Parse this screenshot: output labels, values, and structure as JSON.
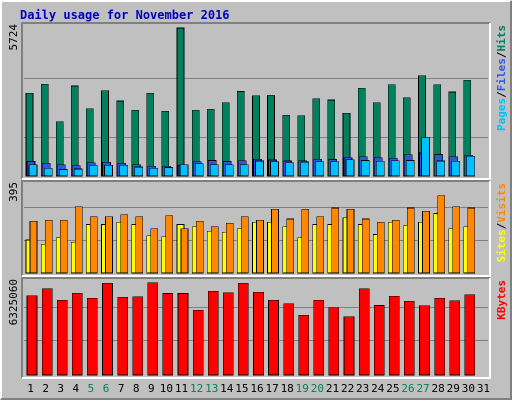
{
  "title": "Daily usage for November 2016",
  "colors": {
    "background": "#C0C0C0",
    "title": "#0000C0",
    "pages": "#00C0FF",
    "files": "#2F54E8",
    "hits": "#00805C",
    "sites": "#FFFF00",
    "visits": "#FF8800",
    "kbytes": "#FF0000",
    "weekend_label": "#00805C"
  },
  "chart_data": [
    {
      "type": "bar",
      "title": "Daily usage for November 2016",
      "legend": [
        "Pages",
        "Files",
        "Hits"
      ],
      "ylabel_top": "5724",
      "categories": [
        "1",
        "2",
        "3",
        "4",
        "5",
        "6",
        "7",
        "8",
        "9",
        "10",
        "11",
        "12",
        "13",
        "14",
        "15",
        "16",
        "17",
        "18",
        "19",
        "20",
        "21",
        "22",
        "23",
        "24",
        "25",
        "26",
        "27",
        "28",
        "29",
        "30",
        "31"
      ],
      "weekend_days": [
        5,
        6,
        12,
        13,
        19,
        20,
        26,
        27
      ],
      "ylim": [
        0,
        5724
      ],
      "series": [
        {
          "name": "Hits",
          "values": [
            3200,
            3550,
            2100,
            3480,
            2600,
            3300,
            2900,
            2550,
            3200,
            2500,
            5724,
            2550,
            2580,
            2830,
            3270,
            3100,
            3130,
            2350,
            2330,
            2980,
            2940,
            2430,
            3400,
            2830,
            3530,
            3020,
            3880,
            3530,
            3250,
            3700,
            0
          ]
        },
        {
          "name": "Files",
          "values": [
            560,
            500,
            440,
            400,
            510,
            530,
            490,
            430,
            380,
            380,
            410,
            550,
            600,
            560,
            590,
            650,
            620,
            580,
            590,
            650,
            640,
            710,
            740,
            710,
            690,
            820,
            890,
            830,
            740,
            800,
            0
          ]
        },
        {
          "name": "Pages",
          "values": [
            440,
            300,
            250,
            270,
            420,
            420,
            410,
            350,
            300,
            330,
            430,
            470,
            430,
            430,
            440,
            580,
            550,
            520,
            540,
            550,
            550,
            630,
            600,
            570,
            590,
            600,
            1480,
            580,
            570,
            760,
            0
          ]
        }
      ]
    },
    {
      "type": "bar",
      "legend": [
        "Sites",
        "Visits"
      ],
      "ylabel_top": "395",
      "categories": [
        "1",
        "2",
        "3",
        "4",
        "5",
        "6",
        "7",
        "8",
        "9",
        "10",
        "11",
        "12",
        "13",
        "14",
        "15",
        "16",
        "17",
        "18",
        "19",
        "20",
        "21",
        "22",
        "23",
        "24",
        "25",
        "26",
        "27",
        "28",
        "29",
        "30",
        "31"
      ],
      "ylim": [
        0,
        395
      ],
      "series": [
        {
          "name": "Sites",
          "values": [
            150,
            130,
            160,
            140,
            220,
            220,
            230,
            220,
            170,
            165,
            220,
            210,
            190,
            185,
            200,
            230,
            230,
            210,
            160,
            220,
            220,
            250,
            220,
            175,
            230,
            215,
            230,
            270,
            200,
            210,
            0
          ]
        },
        {
          "name": "Visits",
          "values": [
            235,
            240,
            240,
            300,
            255,
            255,
            265,
            255,
            200,
            260,
            200,
            235,
            210,
            225,
            255,
            240,
            290,
            245,
            290,
            255,
            295,
            290,
            245,
            230,
            240,
            295,
            280,
            350,
            300,
            295,
            0
          ]
        }
      ]
    },
    {
      "type": "bar",
      "legend": [
        "KBytes"
      ],
      "ylabel_top": "6325060",
      "categories": [
        "1",
        "2",
        "3",
        "4",
        "5",
        "6",
        "7",
        "8",
        "9",
        "10",
        "11",
        "12",
        "13",
        "14",
        "15",
        "16",
        "17",
        "18",
        "19",
        "20",
        "21",
        "22",
        "23",
        "24",
        "25",
        "26",
        "27",
        "28",
        "29",
        "30",
        "31"
      ],
      "ylim": [
        0,
        6325060
      ],
      "series": [
        {
          "name": "KBytes",
          "values": [
            5460000,
            5920000,
            5150000,
            5610000,
            5290000,
            6320000,
            5340000,
            5380000,
            6350000,
            5600000,
            5600000,
            4440000,
            5760000,
            5650000,
            6320000,
            5680000,
            5130000,
            4890000,
            4120000,
            5140000,
            4610000,
            4010000,
            5920000,
            4780000,
            5420000,
            5070000,
            4770000,
            5270000,
            5110000,
            5530000,
            0
          ]
        }
      ]
    }
  ]
}
